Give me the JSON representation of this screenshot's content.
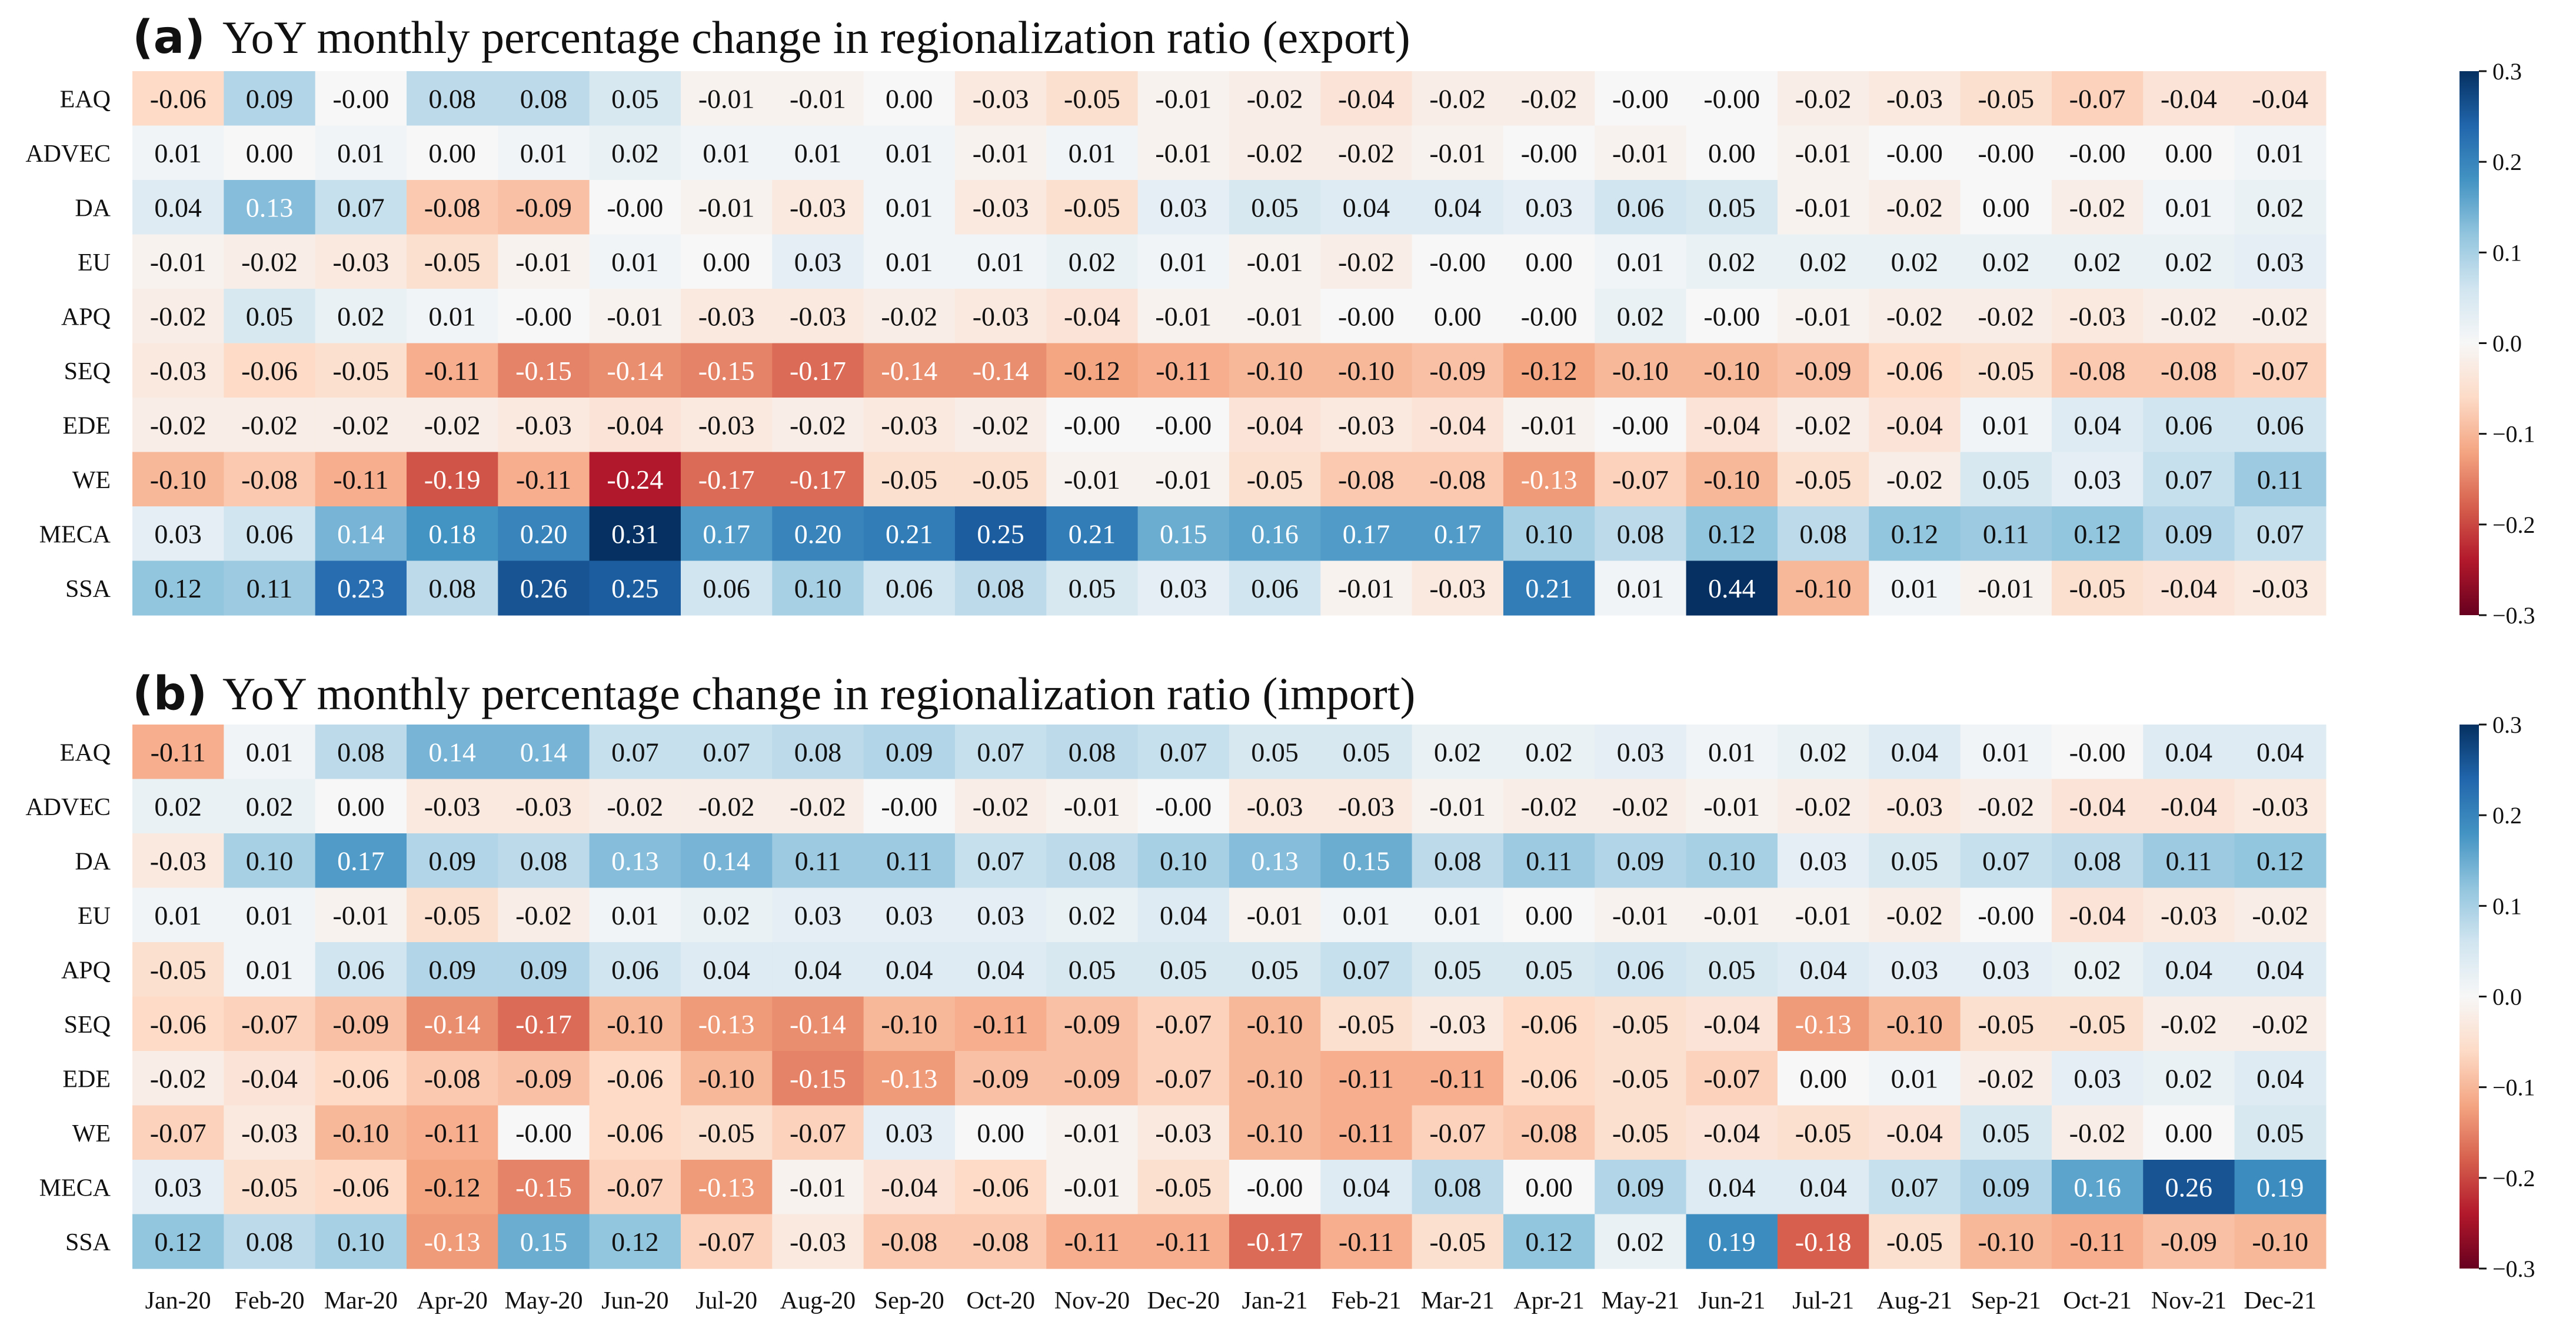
{
  "colors": {
    "colormap": "RdBu",
    "low": "#67001f",
    "mid": "#f7f7f7",
    "high": "#053061",
    "text_dark": "#111111",
    "text_light": "#ffffff"
  },
  "chart_data": [
    {
      "type": "heatmap",
      "letter": "(a)",
      "title": "YoY monthly percentage change in regionalization ratio (export)",
      "rows": [
        "EAQ",
        "ADVEC",
        "DA",
        "EU",
        "APQ",
        "SEQ",
        "EDE",
        "WE",
        "MECA",
        "SSA"
      ],
      "columns": [
        "Jan-20",
        "Feb-20",
        "Mar-20",
        "Apr-20",
        "May-20",
        "Jun-20",
        "Jul-20",
        "Aug-20",
        "Sep-20",
        "Oct-20",
        "Nov-20",
        "Dec-20",
        "Jan-21",
        "Feb-21",
        "Mar-21",
        "Apr-21",
        "May-21",
        "Jun-21",
        "Jul-21",
        "Aug-21",
        "Sep-21",
        "Oct-21",
        "Nov-21",
        "Dec-21"
      ],
      "values": [
        [
          "-0.06",
          "0.09",
          "-0.00",
          "0.08",
          "0.08",
          "0.05",
          "-0.01",
          "-0.01",
          "0.00",
          "-0.03",
          "-0.05",
          "-0.01",
          "-0.02",
          "-0.04",
          "-0.02",
          "-0.02",
          "-0.00",
          "-0.00",
          "-0.02",
          "-0.03",
          "-0.05",
          "-0.07",
          "-0.04",
          "-0.04"
        ],
        [
          "0.01",
          "0.00",
          "0.01",
          "0.00",
          "0.01",
          "0.02",
          "0.01",
          "0.01",
          "0.01",
          "-0.01",
          "0.01",
          "-0.01",
          "-0.02",
          "-0.02",
          "-0.01",
          "-0.00",
          "-0.01",
          "0.00",
          "-0.01",
          "-0.00",
          "-0.00",
          "-0.00",
          "0.00",
          "0.01"
        ],
        [
          "0.04",
          "0.13",
          "0.07",
          "-0.08",
          "-0.09",
          "-0.00",
          "-0.01",
          "-0.03",
          "0.01",
          "-0.03",
          "-0.05",
          "0.03",
          "0.05",
          "0.04",
          "0.04",
          "0.03",
          "0.06",
          "0.05",
          "-0.01",
          "-0.02",
          "0.00",
          "-0.02",
          "0.01",
          "0.02"
        ],
        [
          "-0.01",
          "-0.02",
          "-0.03",
          "-0.05",
          "-0.01",
          "0.01",
          "0.00",
          "0.03",
          "0.01",
          "0.01",
          "0.02",
          "0.01",
          "-0.01",
          "-0.02",
          "-0.00",
          "0.00",
          "0.01",
          "0.02",
          "0.02",
          "0.02",
          "0.02",
          "0.02",
          "0.02",
          "0.03"
        ],
        [
          "-0.02",
          "0.05",
          "0.02",
          "0.01",
          "-0.00",
          "-0.01",
          "-0.03",
          "-0.03",
          "-0.02",
          "-0.03",
          "-0.04",
          "-0.01",
          "-0.01",
          "-0.00",
          "0.00",
          "-0.00",
          "0.02",
          "-0.00",
          "-0.01",
          "-0.02",
          "-0.02",
          "-0.03",
          "-0.02",
          "-0.02"
        ],
        [
          "-0.03",
          "-0.06",
          "-0.05",
          "-0.11",
          "-0.15",
          "-0.14",
          "-0.15",
          "-0.17",
          "-0.14",
          "-0.14",
          "-0.12",
          "-0.11",
          "-0.10",
          "-0.10",
          "-0.09",
          "-0.12",
          "-0.10",
          "-0.10",
          "-0.09",
          "-0.06",
          "-0.05",
          "-0.08",
          "-0.08",
          "-0.07"
        ],
        [
          "-0.02",
          "-0.02",
          "-0.02",
          "-0.02",
          "-0.03",
          "-0.04",
          "-0.03",
          "-0.02",
          "-0.03",
          "-0.02",
          "-0.00",
          "-0.00",
          "-0.04",
          "-0.03",
          "-0.04",
          "-0.01",
          "-0.00",
          "-0.04",
          "-0.02",
          "-0.04",
          "0.01",
          "0.04",
          "0.06",
          "0.06"
        ],
        [
          "-0.10",
          "-0.08",
          "-0.11",
          "-0.19",
          "-0.11",
          "-0.24",
          "-0.17",
          "-0.17",
          "-0.05",
          "-0.05",
          "-0.01",
          "-0.01",
          "-0.05",
          "-0.08",
          "-0.08",
          "-0.13",
          "-0.07",
          "-0.10",
          "-0.05",
          "-0.02",
          "0.05",
          "0.03",
          "0.07",
          "0.11"
        ],
        [
          "0.03",
          "0.06",
          "0.14",
          "0.18",
          "0.20",
          "0.31",
          "0.17",
          "0.20",
          "0.21",
          "0.25",
          "0.21",
          "0.15",
          "0.16",
          "0.17",
          "0.17",
          "0.10",
          "0.08",
          "0.12",
          "0.08",
          "0.12",
          "0.11",
          "0.12",
          "0.09",
          "0.07"
        ],
        [
          "0.12",
          "0.11",
          "0.23",
          "0.08",
          "0.26",
          "0.25",
          "0.06",
          "0.10",
          "0.06",
          "0.08",
          "0.05",
          "0.03",
          "0.06",
          "-0.01",
          "-0.03",
          "0.21",
          "0.01",
          "0.44",
          "-0.10",
          "0.01",
          "-0.01",
          "-0.05",
          "-0.04",
          "-0.03"
        ]
      ],
      "vmin": -0.3,
      "vmax": 0.3,
      "colorbar_ticks": [
        "0.3",
        "0.2",
        "0.1",
        "0.0",
        "−0.1",
        "−0.2",
        "−0.3"
      ]
    },
    {
      "type": "heatmap",
      "letter": "(b)",
      "title": "YoY monthly percentage change in regionalization ratio (import)",
      "rows": [
        "EAQ",
        "ADVEC",
        "DA",
        "EU",
        "APQ",
        "SEQ",
        "EDE",
        "WE",
        "MECA",
        "SSA"
      ],
      "columns": [
        "Jan-20",
        "Feb-20",
        "Mar-20",
        "Apr-20",
        "May-20",
        "Jun-20",
        "Jul-20",
        "Aug-20",
        "Sep-20",
        "Oct-20",
        "Nov-20",
        "Dec-20",
        "Jan-21",
        "Feb-21",
        "Mar-21",
        "Apr-21",
        "May-21",
        "Jun-21",
        "Jul-21",
        "Aug-21",
        "Sep-21",
        "Oct-21",
        "Nov-21",
        "Dec-21"
      ],
      "values": [
        [
          "-0.11",
          "0.01",
          "0.08",
          "0.14",
          "0.14",
          "0.07",
          "0.07",
          "0.08",
          "0.09",
          "0.07",
          "0.08",
          "0.07",
          "0.05",
          "0.05",
          "0.02",
          "0.02",
          "0.03",
          "0.01",
          "0.02",
          "0.04",
          "0.01",
          "-0.00",
          "0.04",
          "0.04"
        ],
        [
          "0.02",
          "0.02",
          "0.00",
          "-0.03",
          "-0.03",
          "-0.02",
          "-0.02",
          "-0.02",
          "-0.00",
          "-0.02",
          "-0.01",
          "-0.00",
          "-0.03",
          "-0.03",
          "-0.01",
          "-0.02",
          "-0.02",
          "-0.01",
          "-0.02",
          "-0.03",
          "-0.02",
          "-0.04",
          "-0.04",
          "-0.03"
        ],
        [
          "-0.03",
          "0.10",
          "0.17",
          "0.09",
          "0.08",
          "0.13",
          "0.14",
          "0.11",
          "0.11",
          "0.07",
          "0.08",
          "0.10",
          "0.13",
          "0.15",
          "0.08",
          "0.11",
          "0.09",
          "0.10",
          "0.03",
          "0.05",
          "0.07",
          "0.08",
          "0.11",
          "0.12"
        ],
        [
          "0.01",
          "0.01",
          "-0.01",
          "-0.05",
          "-0.02",
          "0.01",
          "0.02",
          "0.03",
          "0.03",
          "0.03",
          "0.02",
          "0.04",
          "-0.01",
          "0.01",
          "0.01",
          "0.00",
          "-0.01",
          "-0.01",
          "-0.01",
          "-0.02",
          "-0.00",
          "-0.04",
          "-0.03",
          "-0.02"
        ],
        [
          "-0.05",
          "0.01",
          "0.06",
          "0.09",
          "0.09",
          "0.06",
          "0.04",
          "0.04",
          "0.04",
          "0.04",
          "0.05",
          "0.05",
          "0.05",
          "0.07",
          "0.05",
          "0.05",
          "0.06",
          "0.05",
          "0.04",
          "0.03",
          "0.03",
          "0.02",
          "0.04",
          "0.04"
        ],
        [
          "-0.06",
          "-0.07",
          "-0.09",
          "-0.14",
          "-0.17",
          "-0.10",
          "-0.13",
          "-0.14",
          "-0.10",
          "-0.11",
          "-0.09",
          "-0.07",
          "-0.10",
          "-0.05",
          "-0.03",
          "-0.06",
          "-0.05",
          "-0.04",
          "-0.13",
          "-0.10",
          "-0.05",
          "-0.05",
          "-0.02",
          "-0.02"
        ],
        [
          "-0.02",
          "-0.04",
          "-0.06",
          "-0.08",
          "-0.09",
          "-0.06",
          "-0.10",
          "-0.15",
          "-0.13",
          "-0.09",
          "-0.09",
          "-0.07",
          "-0.10",
          "-0.11",
          "-0.11",
          "-0.06",
          "-0.05",
          "-0.07",
          "0.00",
          "0.01",
          "-0.02",
          "0.03",
          "0.02",
          "0.04"
        ],
        [
          "-0.07",
          "-0.03",
          "-0.10",
          "-0.11",
          "-0.00",
          "-0.06",
          "-0.05",
          "-0.07",
          "0.03",
          "0.00",
          "-0.01",
          "-0.03",
          "-0.10",
          "-0.11",
          "-0.07",
          "-0.08",
          "-0.05",
          "-0.04",
          "-0.05",
          "-0.04",
          "0.05",
          "-0.02",
          "0.00",
          "0.05"
        ],
        [
          "0.03",
          "-0.05",
          "-0.06",
          "-0.12",
          "-0.15",
          "-0.07",
          "-0.13",
          "-0.01",
          "-0.04",
          "-0.06",
          "-0.01",
          "-0.05",
          "-0.00",
          "0.04",
          "0.08",
          "0.00",
          "0.09",
          "0.04",
          "0.04",
          "0.07",
          "0.09",
          "0.16",
          "0.26",
          "0.19"
        ],
        [
          "0.12",
          "0.08",
          "0.10",
          "-0.13",
          "0.15",
          "0.12",
          "-0.07",
          "-0.03",
          "-0.08",
          "-0.08",
          "-0.11",
          "-0.11",
          "-0.17",
          "-0.11",
          "-0.05",
          "0.12",
          "0.02",
          "0.19",
          "-0.18",
          "-0.05",
          "-0.10",
          "-0.11",
          "-0.09",
          "-0.10"
        ]
      ],
      "vmin": -0.3,
      "vmax": 0.3,
      "colorbar_ticks": [
        "0.3",
        "0.2",
        "0.1",
        "0.0",
        "−0.1",
        "−0.2",
        "−0.3"
      ]
    }
  ]
}
